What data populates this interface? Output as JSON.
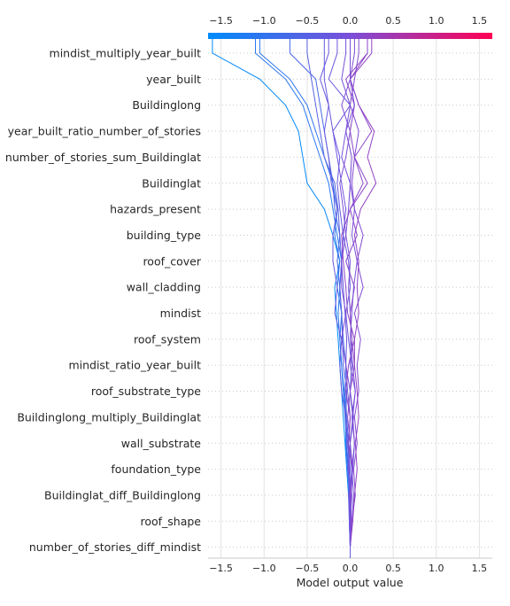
{
  "chart_data": {
    "type": "line",
    "title": "",
    "xlabel": "Model output value",
    "ylabel": "",
    "xlim": [
      -1.65,
      1.65
    ],
    "xticks": [
      "−1.5",
      "−1.0",
      "−0.5",
      "0.0",
      "0.5",
      "1.0",
      "1.5"
    ],
    "xtick_values": [
      -1.5,
      -1.0,
      -0.5,
      0.0,
      0.5,
      1.0,
      1.5
    ],
    "features": [
      "mindist_multiply_year_built",
      "year_built",
      "Buildinglong",
      "year_built_ratio_number_of_stories",
      "number_of_stories_sum_Buildinglat",
      "Buildinglat",
      "hazards_present",
      "building_type",
      "roof_cover",
      "wall_cladding",
      "mindist",
      "roof_system",
      "mindist_ratio_year_built",
      "roof_substrate_type",
      "Buildinglong_multiply_Buildinglat",
      "wall_substrate",
      "foundation_type",
      "Buildinglat_diff_Buildinglong",
      "roof_shape",
      "number_of_stories_diff_mindist"
    ],
    "base_value": 0.0,
    "colorbar": {
      "low_color": "#008bfb",
      "high_color": "#ff0052"
    },
    "grid": true,
    "series": [
      {
        "final": -1.6,
        "values": [
          0.0,
          0.01,
          -0.02,
          -0.04,
          -0.06,
          -0.08,
          -0.1,
          -0.12,
          -0.14,
          -0.16,
          -0.18,
          -0.12,
          -0.2,
          -0.3,
          -0.5,
          -0.55,
          -0.6,
          -0.75,
          -1.05,
          -1.6
        ]
      },
      {
        "final": -1.1,
        "values": [
          0.0,
          0.0,
          0.01,
          -0.02,
          -0.04,
          -0.06,
          -0.08,
          -0.1,
          -0.12,
          -0.14,
          -0.12,
          -0.1,
          -0.15,
          -0.2,
          -0.25,
          -0.35,
          -0.45,
          -0.55,
          -0.75,
          -1.1
        ]
      },
      {
        "final": -1.05,
        "values": [
          0.0,
          -0.01,
          0.0,
          -0.03,
          -0.05,
          -0.05,
          -0.07,
          -0.1,
          -0.12,
          -0.1,
          -0.15,
          -0.12,
          -0.18,
          -0.15,
          -0.2,
          -0.3,
          -0.4,
          -0.5,
          -0.7,
          -1.05
        ]
      },
      {
        "final": -0.7,
        "values": [
          0.0,
          0.01,
          0.0,
          -0.02,
          -0.02,
          -0.04,
          -0.06,
          -0.05,
          -0.08,
          -0.1,
          -0.12,
          -0.15,
          -0.12,
          -0.18,
          -0.2,
          -0.25,
          -0.3,
          -0.35,
          -0.4,
          -0.7
        ]
      },
      {
        "final": -0.5,
        "values": [
          0.0,
          0.0,
          -0.01,
          -0.03,
          -0.04,
          -0.05,
          -0.04,
          -0.08,
          -0.09,
          -0.1,
          -0.12,
          -0.1,
          -0.12,
          -0.14,
          -0.18,
          -0.3,
          -0.35,
          -0.4,
          -0.45,
          -0.5
        ]
      },
      {
        "final": -0.25,
        "values": [
          0.0,
          0.01,
          0.01,
          -0.01,
          -0.02,
          0.0,
          -0.03,
          -0.05,
          -0.04,
          -0.06,
          -0.08,
          -0.1,
          -0.08,
          -0.12,
          -0.15,
          -0.12,
          -0.2,
          -0.25,
          -0.35,
          -0.25
        ]
      },
      {
        "final": -0.05,
        "values": [
          0.0,
          0.02,
          0.04,
          0.02,
          0.05,
          0.03,
          0.06,
          0.0,
          0.02,
          0.0,
          -0.02,
          0.0,
          -0.05,
          -0.02,
          0.0,
          -0.1,
          -0.05,
          0.0,
          -0.1,
          -0.05
        ]
      },
      {
        "final": 0.05,
        "values": [
          0.0,
          0.0,
          0.02,
          -0.02,
          0.0,
          0.04,
          0.0,
          -0.05,
          -0.1,
          -0.05,
          -0.1,
          -0.1,
          -0.05,
          -0.08,
          -0.12,
          -0.05,
          0.0,
          -0.1,
          0.0,
          0.05
        ]
      },
      {
        "final": 0.1,
        "values": [
          0.0,
          0.02,
          0.06,
          0.04,
          0.08,
          0.05,
          0.1,
          0.08,
          0.12,
          0.05,
          0.15,
          0.08,
          0.15,
          0.05,
          0.02,
          0.05,
          0.1,
          0.0,
          0.05,
          0.1
        ]
      },
      {
        "final": 0.2,
        "values": [
          0.0,
          -0.01,
          0.0,
          0.03,
          0.0,
          -0.03,
          0.0,
          0.05,
          0.02,
          0.0,
          0.05,
          -0.05,
          0.08,
          0.0,
          0.15,
          0.05,
          0.0,
          0.05,
          -0.05,
          0.2
        ]
      },
      {
        "final": 0.25,
        "values": [
          0.0,
          0.03,
          0.05,
          0.08,
          0.06,
          0.1,
          0.08,
          0.05,
          0.05,
          0.1,
          0.08,
          0.1,
          0.05,
          0.12,
          0.3,
          0.2,
          0.28,
          0.1,
          0.0,
          0.25
        ]
      },
      {
        "final": 0.2,
        "values": [
          0.0,
          0.01,
          0.0,
          0.02,
          -0.02,
          0.0,
          -0.05,
          -0.02,
          0.05,
          -0.03,
          -0.05,
          -0.08,
          -0.1,
          0.0,
          0.2,
          0.05,
          0.25,
          0.1,
          0.0,
          0.2
        ]
      },
      {
        "final": -0.15,
        "values": [
          0.0,
          0.0,
          -0.01,
          0.02,
          0.0,
          0.03,
          0.0,
          0.02,
          -0.02,
          -0.05,
          0.0,
          -0.02,
          -0.08,
          -0.05,
          -0.1,
          -0.15,
          -0.2,
          0.0,
          -0.25,
          -0.15
        ]
      },
      {
        "final": 0.0,
        "values": [
          0.0,
          0.0,
          0.01,
          0.03,
          0.05,
          0.02,
          0.06,
          0.03,
          0.0,
          0.02,
          0.04,
          0.08,
          0.02,
          0.05,
          0.0,
          0.02,
          -0.05,
          0.05,
          0.0,
          0.0
        ]
      },
      {
        "final": -0.3,
        "values": [
          0.0,
          -0.01,
          -0.02,
          0.0,
          -0.03,
          -0.05,
          -0.1,
          -0.12,
          -0.1,
          -0.18,
          -0.15,
          -0.2,
          -0.2,
          -0.15,
          -0.22,
          -0.25,
          -0.3,
          -0.25,
          -0.3,
          -0.3
        ]
      }
    ]
  }
}
